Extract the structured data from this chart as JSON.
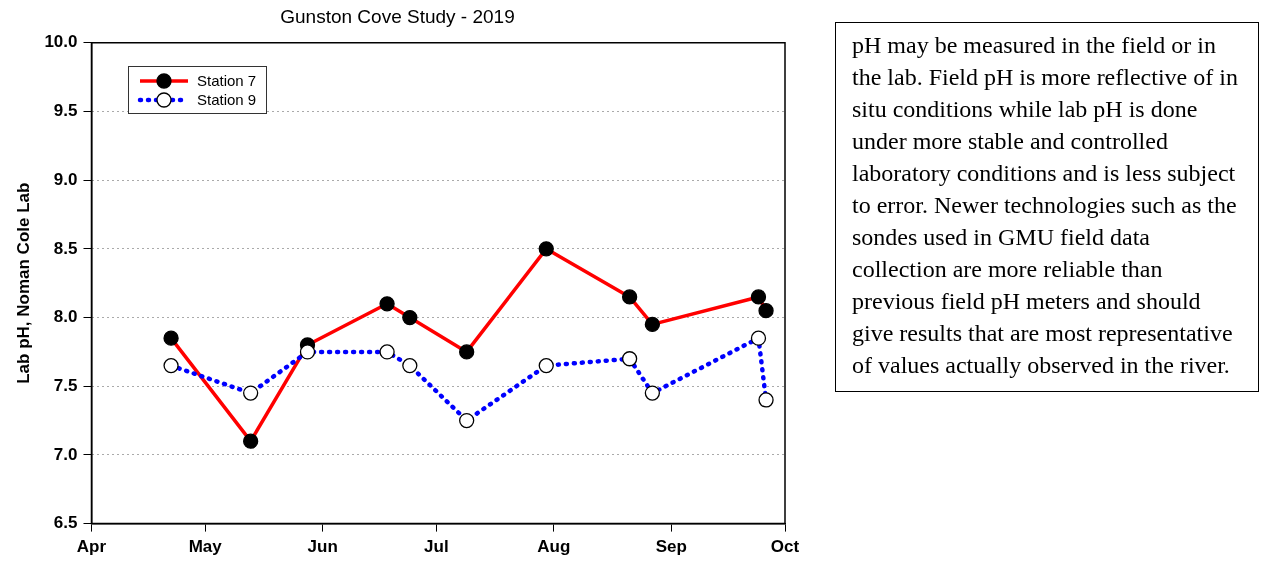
{
  "chart_data": {
    "type": "line",
    "title": "Gunston Cove Study - 2019",
    "ylabel": "Lab pH, Noman Cole Lab",
    "x": [
      "2019-04-22",
      "2019-05-13",
      "2019-05-28",
      "2019-06-18",
      "2019-06-24",
      "2019-07-09",
      "2019-07-30",
      "2019-08-21",
      "2019-08-27",
      "2019-09-24",
      "2019-09-26"
    ],
    "series": [
      {
        "name": "Station 7",
        "color": "#ff0000",
        "line_style": "solid",
        "values": [
          7.85,
          7.1,
          7.8,
          8.1,
          8.0,
          7.75,
          8.5,
          8.15,
          7.95,
          8.15,
          8.05
        ]
      },
      {
        "name": "Station 9",
        "color": "#0000ff",
        "line_style": "dotted",
        "values": [
          7.65,
          7.45,
          7.75,
          7.75,
          7.65,
          7.25,
          7.65,
          7.7,
          7.45,
          7.85,
          7.4
        ]
      }
    ],
    "xlim": [
      "2019-04-01",
      "2019-10-01"
    ],
    "xticks": [
      {
        "value": "2019-04-01",
        "label": "Apr"
      },
      {
        "value": "2019-05-01",
        "label": "May"
      },
      {
        "value": "2019-06-01",
        "label": "Jun"
      },
      {
        "value": "2019-07-01",
        "label": "Jul"
      },
      {
        "value": "2019-08-01",
        "label": "Aug"
      },
      {
        "value": "2019-09-01",
        "label": "Sep"
      },
      {
        "value": "2019-10-01",
        "label": "Oct"
      }
    ],
    "ylim": [
      6.5,
      10
    ],
    "yticks": [
      {
        "value": 6.5,
        "label": "6.5"
      },
      {
        "value": 7,
        "label": "7.0"
      },
      {
        "value": 7.5,
        "label": "7.5"
      },
      {
        "value": 8,
        "label": "8.0"
      },
      {
        "value": 8.5,
        "label": "8.5"
      },
      {
        "value": 9,
        "label": "9.0"
      },
      {
        "value": 9.5,
        "label": "9.5"
      },
      {
        "value": 10,
        "label": "10.0"
      }
    ],
    "grid": "y",
    "legend": "top left",
    "marker": "circle",
    "annotations": [
      "pH may be measured in the field or in the lab.  Field pH is more reflective of in situ conditions while lab pH is done under more stable and controlled laboratory conditions and is less subject to error. Newer technologies such as the sondes used in GMU field data collection are more reliable than previous field pH meters and should give results that are most representative of values actually observed in the river."
    ]
  }
}
